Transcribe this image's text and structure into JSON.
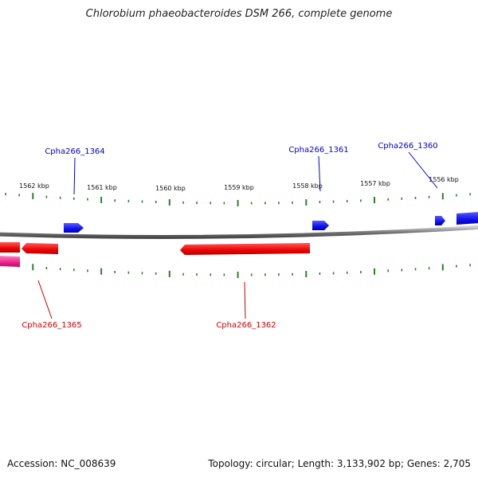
{
  "title": "Chlorobium phaeobacteroides DSM 266, complete genome",
  "footer": {
    "accession": "Accession: NC_008639",
    "summary": "Topology: circular; Length: 3,133,902 bp; Genes: 2,705"
  },
  "scale": {
    "unit": "kbp",
    "labels": [
      "1562 kbp",
      "1561 kbp",
      "1560 kbp",
      "1559 kbp",
      "1558 kbp",
      "1557 kbp",
      "1556 kbp"
    ]
  },
  "genes": {
    "forward": [
      "Cpha266_1364",
      "Cpha266_1361",
      "Cpha266_1360"
    ],
    "reverse": [
      "Cpha266_1365",
      "Cpha266_1362"
    ]
  },
  "colors": {
    "forward_gene": "#1a1aff",
    "reverse_gene": "#ff0000",
    "rna_gene": "#ff3399",
    "backbone": "#8a8a8a",
    "ticks": "#2e7d2e",
    "forward_label": "#0000cc",
    "reverse_label": "#cc0000"
  }
}
